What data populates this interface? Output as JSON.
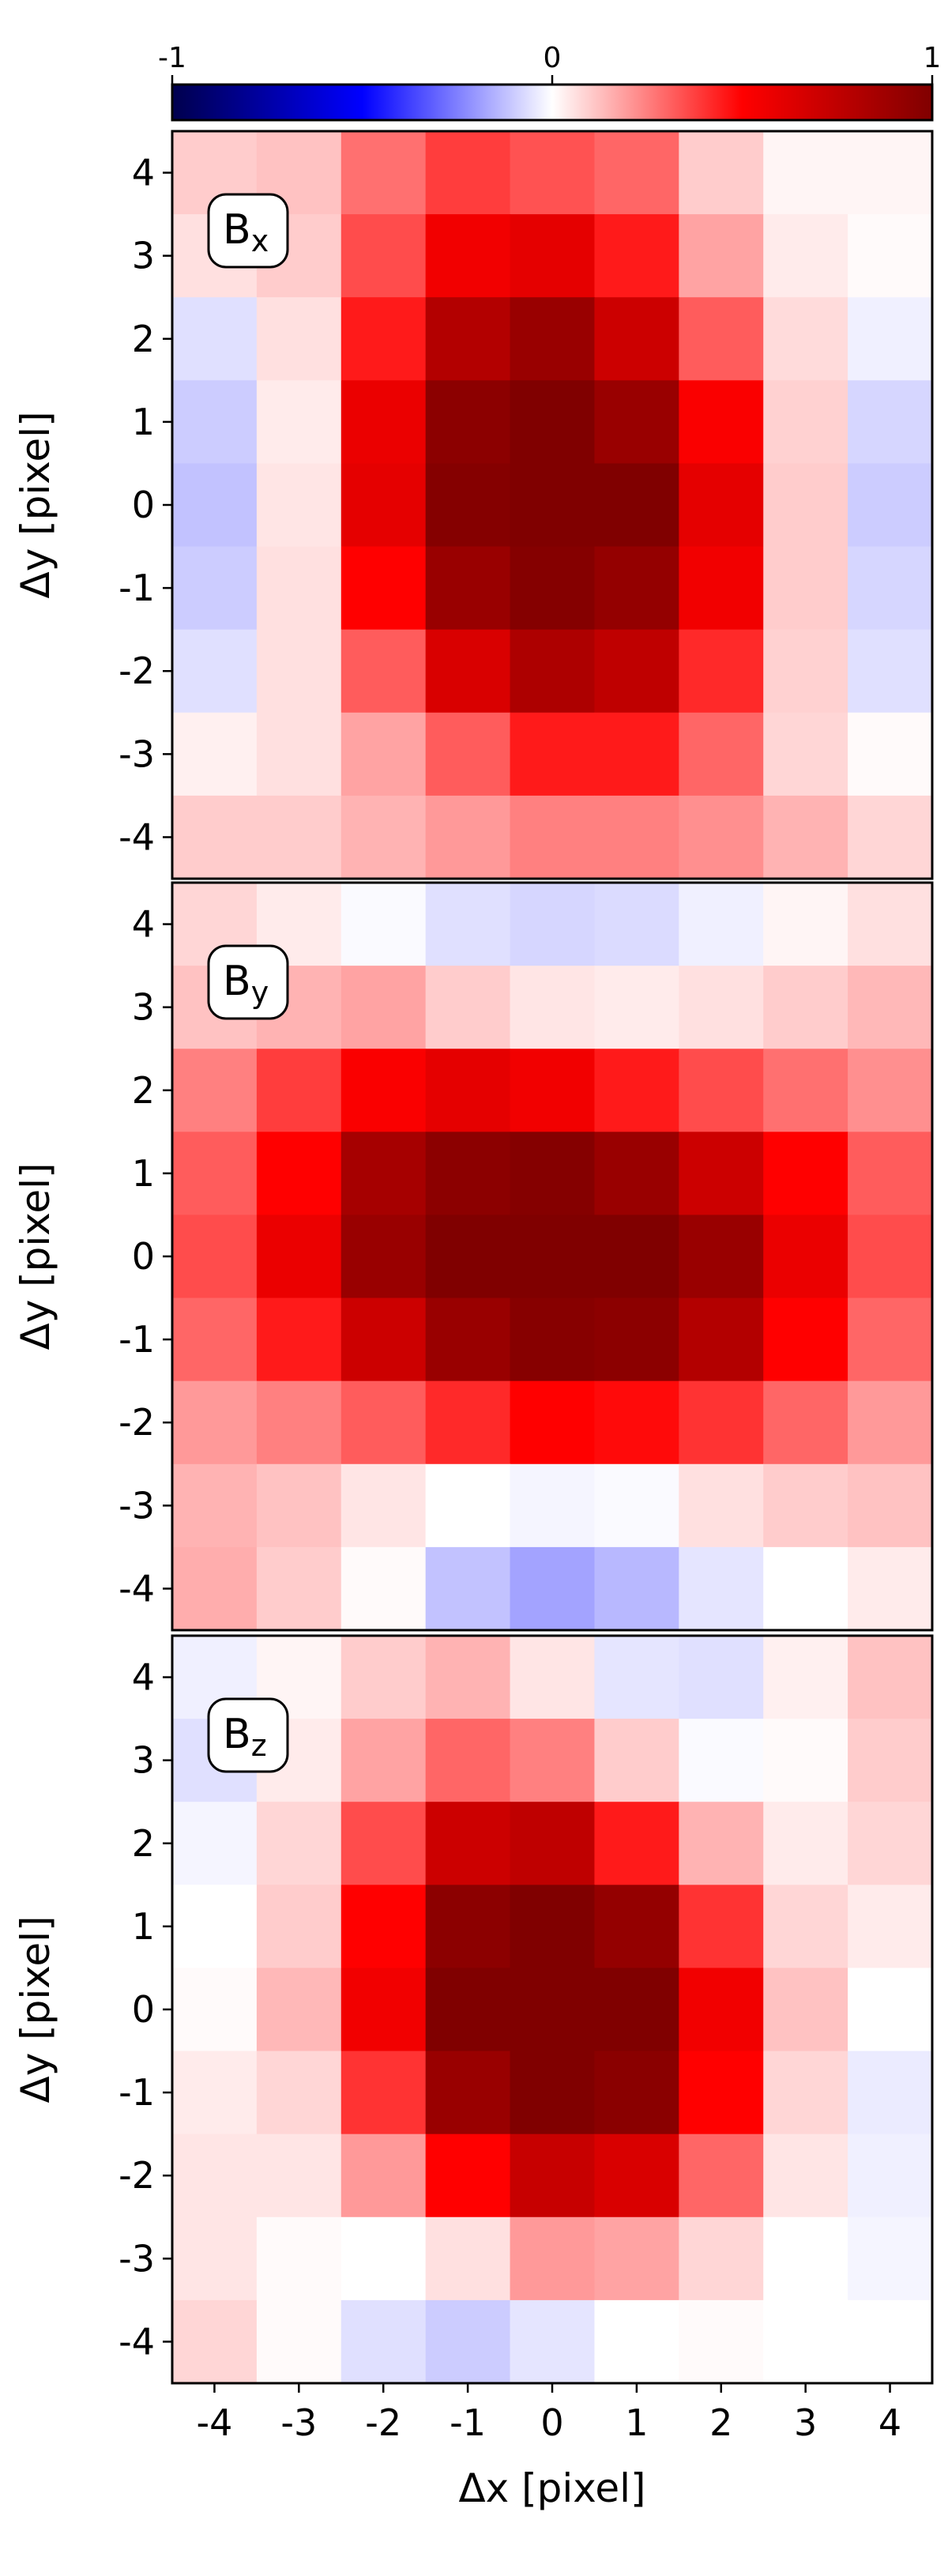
{
  "colorbar": {
    "cmap": "seismic",
    "range": [
      -1,
      1
    ],
    "ticks": [
      -1,
      0,
      1
    ],
    "tick_labels": [
      "-1",
      "0",
      "1"
    ]
  },
  "chart_data": [
    {
      "type": "heatmap",
      "label": "B_x",
      "label_main": "B",
      "label_sub": "x",
      "x": [
        -4,
        -3,
        -2,
        -1,
        0,
        1,
        2,
        3,
        4
      ],
      "y": [
        4,
        3,
        2,
        1,
        0,
        -1,
        -2,
        -3,
        -4
      ],
      "xlabel": "",
      "ylabel": "Δy [pixel]",
      "xticks": [
        "-4",
        "-3",
        "-2",
        "-1",
        "0",
        "1",
        "2",
        "3",
        "4"
      ],
      "yticks": [
        "4",
        "3",
        "2",
        "1",
        "0",
        "-1",
        "-2",
        "-3",
        "-4"
      ],
      "zlim": [
        -1,
        1
      ],
      "values": [
        [
          0.1,
          0.12,
          0.28,
          0.38,
          0.34,
          0.3,
          0.1,
          0.02,
          0.02
        ],
        [
          0.06,
          0.1,
          0.35,
          0.55,
          0.6,
          0.45,
          0.18,
          0.04,
          0.01
        ],
        [
          -0.06,
          0.06,
          0.45,
          0.8,
          0.9,
          0.7,
          0.32,
          0.07,
          -0.03
        ],
        [
          -0.1,
          0.04,
          0.58,
          0.95,
          1.0,
          0.9,
          0.52,
          0.09,
          -0.08
        ],
        [
          -0.12,
          0.05,
          0.6,
          0.98,
          1.1,
          1.0,
          0.6,
          0.1,
          -0.1
        ],
        [
          -0.1,
          0.06,
          0.5,
          0.9,
          0.98,
          0.92,
          0.55,
          0.1,
          -0.08
        ],
        [
          -0.06,
          0.06,
          0.32,
          0.65,
          0.82,
          0.75,
          0.42,
          0.09,
          -0.06
        ],
        [
          0.03,
          0.06,
          0.18,
          0.32,
          0.45,
          0.45,
          0.3,
          0.08,
          0.01
        ],
        [
          0.1,
          0.1,
          0.15,
          0.2,
          0.25,
          0.25,
          0.22,
          0.15,
          0.08
        ]
      ]
    },
    {
      "type": "heatmap",
      "label": "B_y",
      "label_main": "B",
      "label_sub": "y",
      "x": [
        -4,
        -3,
        -2,
        -1,
        0,
        1,
        2,
        3,
        4
      ],
      "y": [
        4,
        3,
        2,
        1,
        0,
        -1,
        -2,
        -3,
        -4
      ],
      "xlabel": "",
      "ylabel": "Δy [pixel]",
      "xticks": [
        "-4",
        "-3",
        "-2",
        "-1",
        "0",
        "1",
        "2",
        "3",
        "4"
      ],
      "yticks": [
        "4",
        "3",
        "2",
        "1",
        "0",
        "-1",
        "-2",
        "-3",
        "-4"
      ],
      "zlim": [
        -1,
        1
      ],
      "values": [
        [
          0.08,
          0.04,
          -0.01,
          -0.06,
          -0.08,
          -0.07,
          -0.03,
          0.02,
          0.06
        ],
        [
          0.12,
          0.15,
          0.18,
          0.1,
          0.05,
          0.04,
          0.06,
          0.1,
          0.14
        ],
        [
          0.25,
          0.38,
          0.52,
          0.6,
          0.55,
          0.45,
          0.35,
          0.28,
          0.22
        ],
        [
          0.32,
          0.5,
          0.85,
          0.95,
          0.98,
          0.9,
          0.7,
          0.5,
          0.32
        ],
        [
          0.35,
          0.58,
          0.9,
          1.05,
          1.12,
          1.05,
          0.9,
          0.58,
          0.35
        ],
        [
          0.3,
          0.45,
          0.7,
          0.9,
          0.97,
          0.95,
          0.8,
          0.5,
          0.3
        ],
        [
          0.2,
          0.25,
          0.32,
          0.42,
          0.5,
          0.48,
          0.4,
          0.3,
          0.2
        ],
        [
          0.15,
          0.12,
          0.05,
          0.0,
          -0.02,
          -0.01,
          0.06,
          0.1,
          0.12
        ],
        [
          0.16,
          0.1,
          0.01,
          -0.12,
          -0.18,
          -0.14,
          -0.05,
          0.0,
          0.04
        ]
      ]
    },
    {
      "type": "heatmap",
      "label": "B_z",
      "label_main": "B",
      "label_sub": "z",
      "x": [
        -4,
        -3,
        -2,
        -1,
        0,
        1,
        2,
        3,
        4
      ],
      "y": [
        4,
        3,
        2,
        1,
        0,
        -1,
        -2,
        -3,
        -4
      ],
      "xlabel": "Δx [pixel]",
      "ylabel": "Δy [pixel]",
      "xticks": [
        "-4",
        "-3",
        "-2",
        "-1",
        "0",
        "1",
        "2",
        "3",
        "4"
      ],
      "yticks": [
        "4",
        "3",
        "2",
        "1",
        "0",
        "-1",
        "-2",
        "-3",
        "-4"
      ],
      "zlim": [
        -1,
        1
      ],
      "values": [
        [
          -0.03,
          0.02,
          0.1,
          0.15,
          0.05,
          -0.05,
          -0.06,
          0.03,
          0.12
        ],
        [
          -0.06,
          0.04,
          0.18,
          0.3,
          0.25,
          0.1,
          -0.01,
          0.01,
          0.1
        ],
        [
          -0.02,
          0.08,
          0.35,
          0.7,
          0.75,
          0.45,
          0.15,
          0.04,
          0.08
        ],
        [
          0.0,
          0.1,
          0.5,
          0.95,
          1.0,
          0.92,
          0.4,
          0.08,
          0.04
        ],
        [
          0.01,
          0.14,
          0.55,
          1.0,
          1.12,
          1.0,
          0.55,
          0.12,
          0.0
        ],
        [
          0.04,
          0.08,
          0.4,
          0.9,
          1.02,
          0.96,
          0.5,
          0.08,
          -0.04
        ],
        [
          0.05,
          0.05,
          0.2,
          0.5,
          0.72,
          0.65,
          0.3,
          0.05,
          -0.03
        ],
        [
          0.05,
          0.01,
          0.0,
          0.06,
          0.2,
          0.18,
          0.08,
          0.0,
          -0.02
        ],
        [
          0.08,
          0.01,
          -0.06,
          -0.1,
          -0.05,
          0.0,
          0.01,
          0.0,
          0.0
        ]
      ]
    }
  ]
}
